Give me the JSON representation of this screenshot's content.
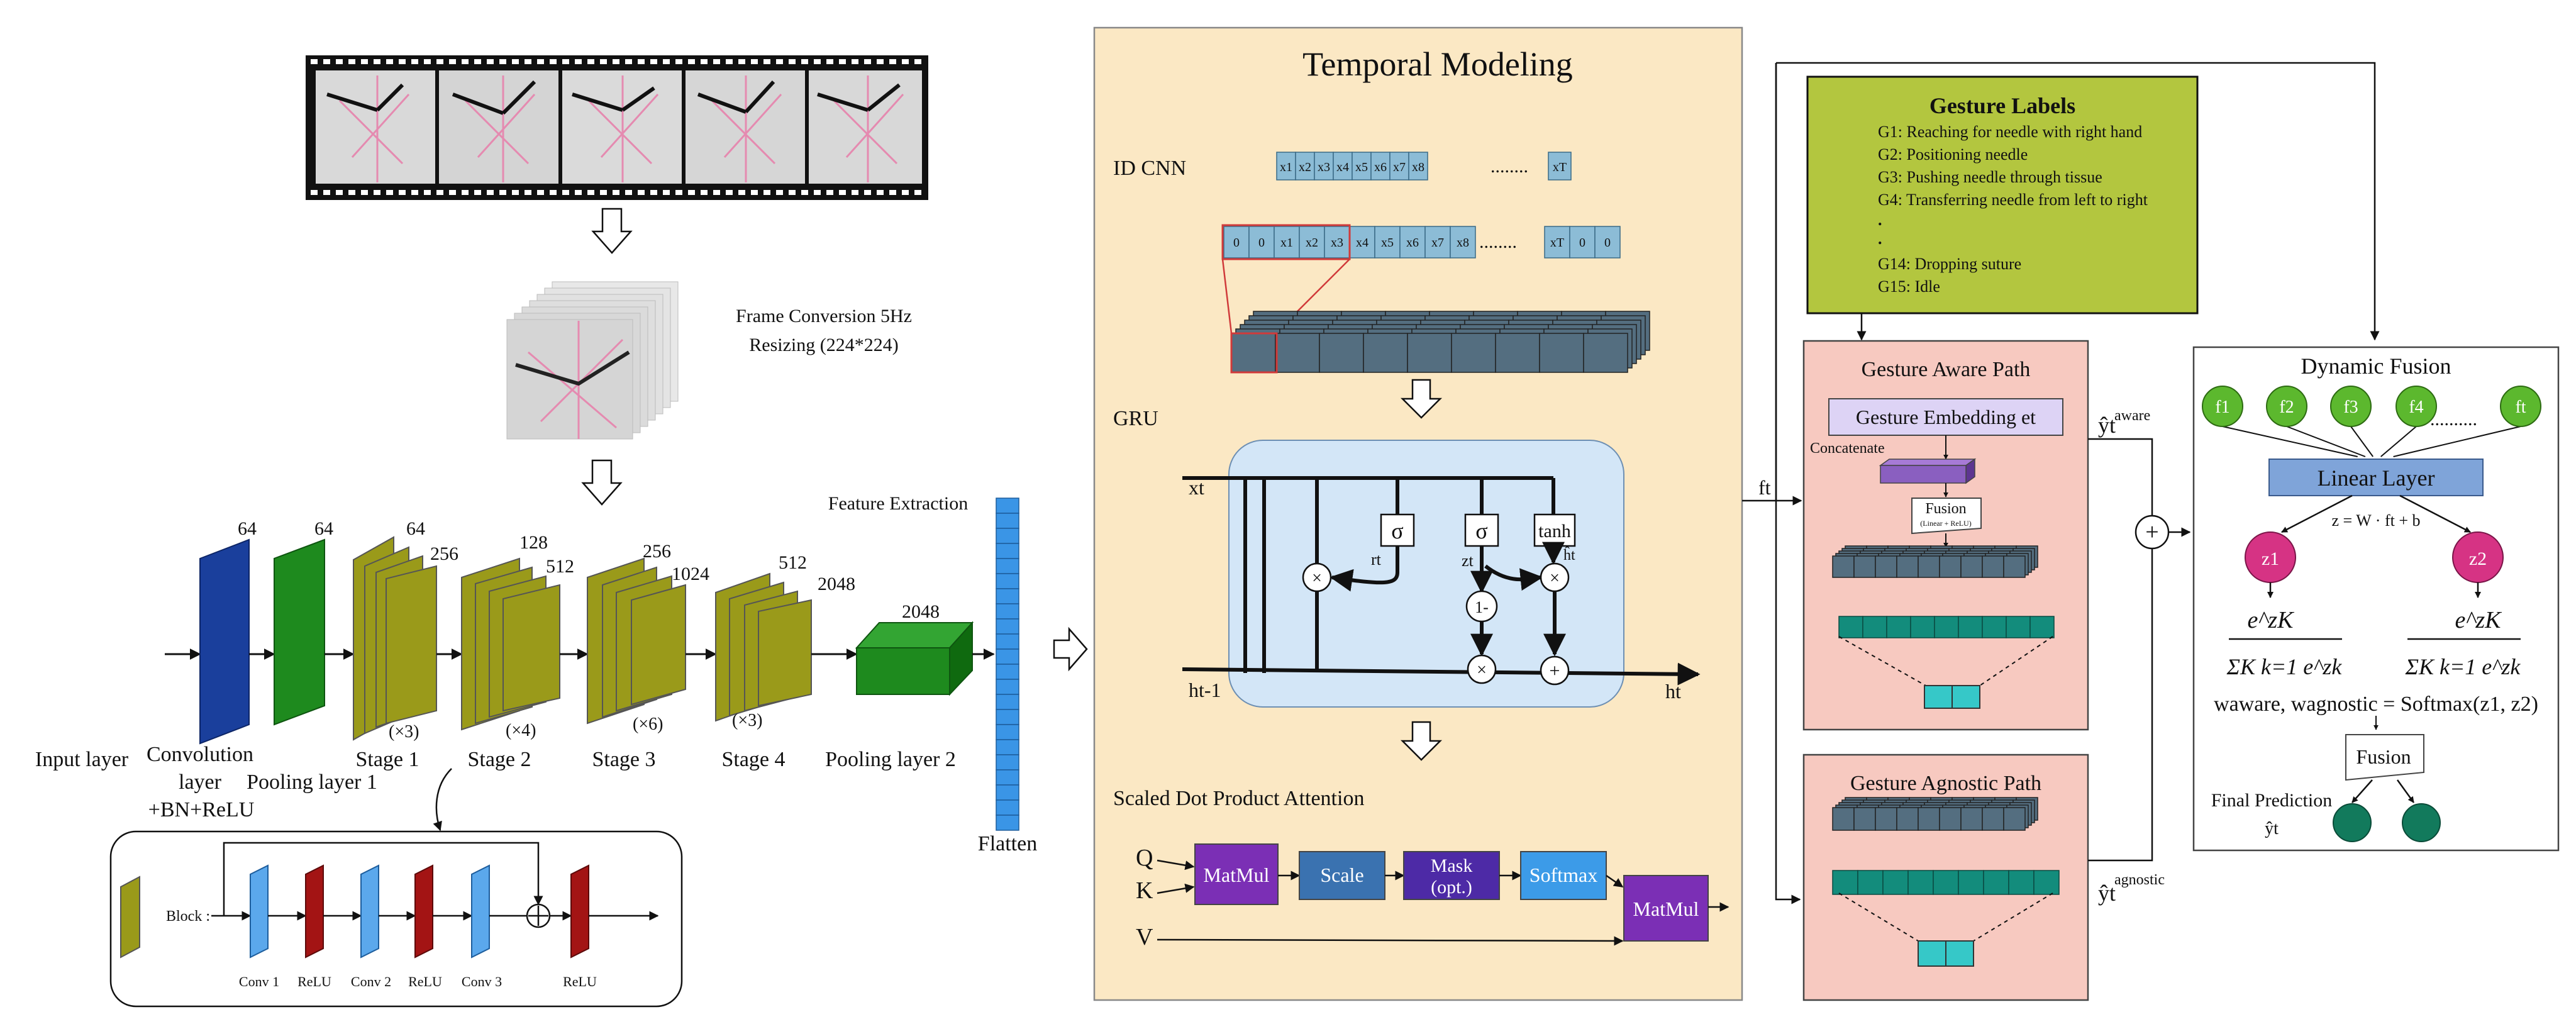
{
  "backbone": {
    "frame_conversion": "Frame Conversion 5Hz",
    "resizing": "Resizing (224*224)",
    "feature_extraction": "Feature Extraction",
    "channels": {
      "conv": "64",
      "pool1": "64",
      "stage1_a": "64",
      "stage1_b": "256",
      "stage2_a": "128",
      "stage2_b": "512",
      "stage3_a": "256",
      "stage3_b": "1024",
      "stage4_a": "512",
      "stage4_b": "2048",
      "pool2": "2048"
    },
    "repeats": {
      "stage1": "(×3)",
      "stage2": "(×4)",
      "stage3": "(×6)",
      "stage4": "(×3)"
    },
    "labels": {
      "input": "Input layer",
      "conv_l1": "Convolution",
      "conv_l2": "layer",
      "conv_l3": "+BN+ReLU",
      "pool1": "Pooling layer 1",
      "stage1": "Stage 1",
      "stage2": "Stage 2",
      "stage3": "Stage 3",
      "stage4": "Stage 4",
      "pool2": "Pooling layer 2",
      "flatten": "Flatten"
    },
    "block": {
      "label": "Block :",
      "conv1": "Conv 1",
      "relu1": "ReLU",
      "conv2": "Conv 2",
      "relu2": "ReLU",
      "conv3": "Conv 3",
      "relu3": "ReLU"
    }
  },
  "temporal": {
    "title": "Temporal Modeling",
    "cnn_label": "ID CNN",
    "seq_top": [
      "x1",
      "x2",
      "x3",
      "x4",
      "x5",
      "x6",
      "x7",
      "x8"
    ],
    "seq_top_last": "xT",
    "seq_pad_start": [
      "0",
      "0",
      "x1",
      "x2",
      "x3",
      "x4",
      "x5",
      "x6",
      "x7",
      "x8"
    ],
    "seq_pad_end": [
      "xT",
      "0",
      "0"
    ],
    "dots": "........",
    "gru_label": "GRU",
    "gru": {
      "xt": "xt",
      "ht1": "ht-1",
      "ht": "ht",
      "sigma_r": "σ",
      "sigma_z": "σ",
      "tanh": "tanh",
      "rt": "rt",
      "zt": "zt",
      "hhat": "ĥt",
      "one_minus": "1-",
      "times": "×",
      "plus": "+"
    },
    "attention_label": "Scaled Dot Product Attention",
    "attention": {
      "q": "Q",
      "k": "K",
      "v": "V",
      "matmul1": "MatMul",
      "scale": "Scale",
      "mask_l1": "Mask",
      "mask_l2": "(opt.)",
      "softmax": "Softmax",
      "matmul2": "MatMul"
    },
    "ft": "ft"
  },
  "gestures": {
    "title": "Gesture Labels",
    "items": [
      "G1: Reaching for needle with right hand",
      "G2: Positioning needle",
      "G3: Pushing needle through tissue",
      "G4: Transferring needle from left to right",
      ".",
      ".",
      "G14: Dropping suture",
      "G15: Idle"
    ]
  },
  "aware_path": {
    "title": "Gesture Aware Path",
    "embedding": "Gesture Embedding  et",
    "concatenate": "Concatenate",
    "fusion": "Fusion",
    "fusion_sub": "(Linear + ReLU)",
    "y_label": "ŷt",
    "y_sup": "aware"
  },
  "agnostic_path": {
    "title": "Gesture Agnostic Path",
    "y_label": "ŷt",
    "y_sup": "agnostic"
  },
  "plus_symbol": "+",
  "dynamic_fusion": {
    "title": "Dynamic Fusion",
    "inputs": [
      "f1",
      "f2",
      "f3",
      "f4",
      "ft"
    ],
    "dots": "..........",
    "linear": "Linear Layer",
    "z_eq": "z = W · ft + b",
    "z1": "z1",
    "z2": "z2",
    "softmax_num": "e^zK",
    "softmax_den": "ΣK k=1 e^zk",
    "weights_eq": "waware, wagnostic = Softmax(z1, z2)",
    "fusion": "Fusion",
    "final_prediction": "Final Prediction",
    "y_hat": "ŷt"
  },
  "colors": {
    "temporal_bg": "#fbe8c4",
    "gesture_bg": "#b3c63f",
    "path_bg": "#f7c9c0",
    "gru_bg": "#d3e6f7",
    "resnet_olive": "#9a9a1a",
    "conv_blue": "#1a3f9c",
    "pool_green": "#1e8a1e",
    "flatten_blue": "#3a95e6",
    "slate": "#546e80",
    "teal": "#138c7c",
    "cyan": "#36c8c8",
    "matmul_purple": "#7b2fb5",
    "scale_blue": "#3a72b0",
    "mask_purple": "#4d2aa6",
    "softmax_blue": "#3c9be8",
    "node_green": "#5cb82e",
    "z_magenta": "#d63384",
    "out_teal": "#127a5c",
    "linear_blue": "#7fa4d9",
    "embed_lav": "#ddd3f5",
    "concat_purple": "#8a5fc0",
    "relu_red": "#a31414",
    "conv_lightblue": "#5ba8ec"
  }
}
